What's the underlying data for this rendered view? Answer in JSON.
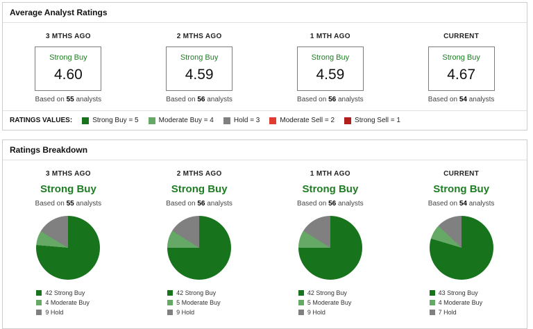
{
  "colors": {
    "strong_buy": "#17741c",
    "moderate_buy": "#66a966",
    "hold": "#808080",
    "moderate_sell": "#e03c31",
    "strong_sell": "#b01e1e",
    "green_text": "#1f7d24"
  },
  "avg_panel": {
    "title": "Average Analyst Ratings",
    "based_prefix": "Based on",
    "based_suffix": "analysts",
    "columns": [
      {
        "period": "3 MTHS AGO",
        "rating": "Strong Buy",
        "value": "4.60",
        "analysts": "55"
      },
      {
        "period": "2 MTHS AGO",
        "rating": "Strong Buy",
        "value": "4.59",
        "analysts": "56"
      },
      {
        "period": "1 MTH AGO",
        "rating": "Strong Buy",
        "value": "4.59",
        "analysts": "56"
      },
      {
        "period": "CURRENT",
        "rating": "Strong Buy",
        "value": "4.67",
        "analysts": "54"
      }
    ],
    "legend": {
      "label": "RATINGS VALUES:",
      "items": [
        {
          "label": "Strong Buy = 5",
          "color": "#17741c"
        },
        {
          "label": "Moderate Buy = 4",
          "color": "#66a966"
        },
        {
          "label": "Hold = 3",
          "color": "#808080"
        },
        {
          "label": "Moderate Sell = 2",
          "color": "#e03c31"
        },
        {
          "label": "Strong Sell = 1",
          "color": "#b01e1e"
        }
      ]
    }
  },
  "breakdown_panel": {
    "title": "Ratings Breakdown",
    "based_prefix": "Based on",
    "based_suffix": "analysts",
    "columns": [
      {
        "period": "3 MTHS AGO",
        "rating": "Strong Buy",
        "analysts": "55",
        "legend": [
          "42 Strong Buy",
          "4 Moderate Buy",
          "9 Hold"
        ]
      },
      {
        "period": "2 MTHS AGO",
        "rating": "Strong Buy",
        "analysts": "56",
        "legend": [
          "42 Strong Buy",
          "5 Moderate Buy",
          "9 Hold"
        ]
      },
      {
        "period": "1 MTH AGO",
        "rating": "Strong Buy",
        "analysts": "56",
        "legend": [
          "42 Strong Buy",
          "5 Moderate Buy",
          "9 Hold"
        ]
      },
      {
        "period": "CURRENT",
        "rating": "Strong Buy",
        "analysts": "54",
        "legend": [
          "43 Strong Buy",
          "4 Moderate Buy",
          "7 Hold"
        ]
      }
    ]
  },
  "chart_data": {
    "type": "pie",
    "title": "Ratings Breakdown",
    "slice_labels": [
      "Strong Buy",
      "Moderate Buy",
      "Hold"
    ],
    "colors": [
      "#17741c",
      "#66a966",
      "#808080"
    ],
    "legend_position": "bottom",
    "rating_scale": {
      "Strong Buy": 5,
      "Moderate Buy": 4,
      "Hold": 3,
      "Moderate Sell": 2,
      "Strong Sell": 1
    },
    "pies": [
      {
        "title": "3 MTHS AGO",
        "rating": "Strong Buy",
        "total_analysts": 55,
        "values": [
          42,
          4,
          9
        ]
      },
      {
        "title": "2 MTHS AGO",
        "rating": "Strong Buy",
        "total_analysts": 56,
        "values": [
          42,
          5,
          9
        ]
      },
      {
        "title": "1 MTH AGO",
        "rating": "Strong Buy",
        "total_analysts": 56,
        "values": [
          42,
          5,
          9
        ]
      },
      {
        "title": "CURRENT",
        "rating": "Strong Buy",
        "total_analysts": 54,
        "values": [
          43,
          4,
          7
        ]
      }
    ],
    "averages": [
      {
        "period": "3 MTHS AGO",
        "value": 4.6,
        "analysts": 55
      },
      {
        "period": "2 MTHS AGO",
        "value": 4.59,
        "analysts": 56
      },
      {
        "period": "1 MTH AGO",
        "value": 4.59,
        "analysts": 56
      },
      {
        "period": "CURRENT",
        "value": 4.67,
        "analysts": 54
      }
    ]
  }
}
